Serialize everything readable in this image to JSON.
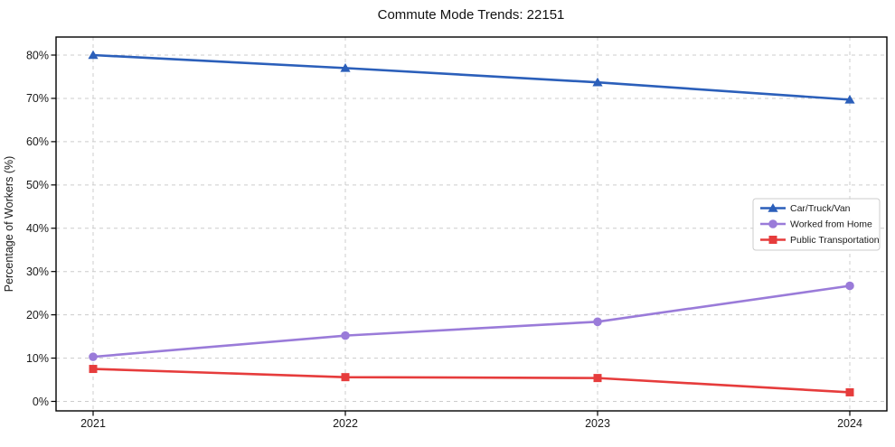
{
  "chart_data": {
    "type": "line",
    "title": "Commute Mode Trends: 22151",
    "xlabel": "",
    "ylabel": "Percentage of Workers (%)",
    "x": [
      2021,
      2022,
      2023,
      2024
    ],
    "x_tick_labels": [
      "2021",
      "2022",
      "2023",
      "2024"
    ],
    "y_ticks": [
      0,
      10,
      20,
      30,
      40,
      50,
      60,
      70,
      80
    ],
    "y_tick_suffix": "%",
    "ylim": [
      0,
      80
    ],
    "grid": "both, dashed light gray",
    "legend_position": "center right inside plot",
    "series": [
      {
        "name": "Car/Truck/Van",
        "marker": "triangle",
        "color": "#2b5fba",
        "values": [
          80.0,
          77.0,
          73.7,
          69.7
        ]
      },
      {
        "name": "Worked from Home",
        "marker": "circle",
        "color": "#9a7bd9",
        "values": [
          10.3,
          15.2,
          18.4,
          26.7
        ]
      },
      {
        "name": "Public Transportation",
        "marker": "square",
        "color": "#e63c3c",
        "values": [
          7.5,
          5.6,
          5.4,
          2.1
        ]
      }
    ],
    "colors": {
      "grid": "#cccccc",
      "spine": "#000000",
      "background": "#ffffff",
      "text": "#1a1a1a"
    }
  }
}
